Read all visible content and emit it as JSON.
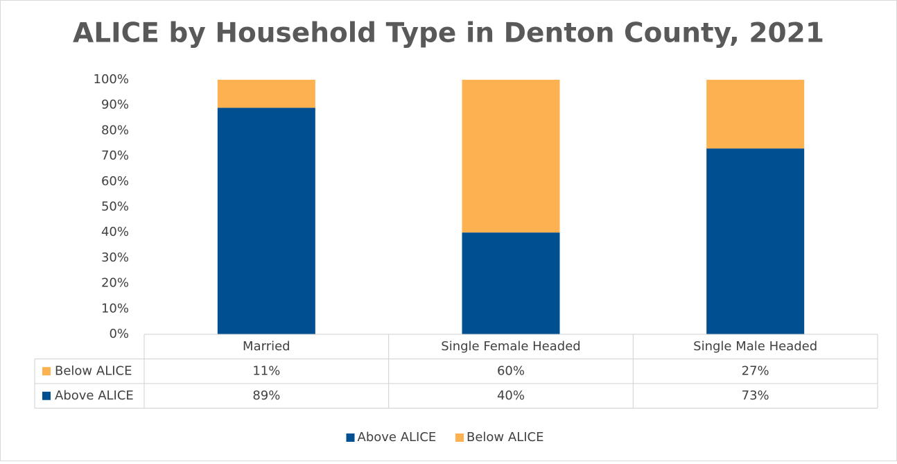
{
  "chart_data": {
    "type": "stacked_bar",
    "title": "ALICE by Household Type in Denton County, 2021",
    "categories": [
      "Married",
      "Single Female Headed",
      "Single Male Headed"
    ],
    "series": [
      {
        "name": "Above ALICE",
        "color": "#005091",
        "values": [
          89,
          40,
          73
        ],
        "value_labels": [
          "89%",
          "40%",
          "73%"
        ]
      },
      {
        "name": "Below ALICE",
        "color": "#FDB150",
        "values": [
          11,
          60,
          27
        ],
        "value_labels": [
          "11%",
          "60%",
          "27%"
        ]
      }
    ],
    "ylim": [
      0,
      100
    ],
    "yticks": [
      {
        "value": 0,
        "label": "0%"
      },
      {
        "value": 10,
        "label": "10%"
      },
      {
        "value": 20,
        "label": "20%"
      },
      {
        "value": 30,
        "label": "30%"
      },
      {
        "value": 40,
        "label": "40%"
      },
      {
        "value": 50,
        "label": "50%"
      },
      {
        "value": 60,
        "label": "60%"
      },
      {
        "value": 70,
        "label": "70%"
      },
      {
        "value": 80,
        "label": "80%"
      },
      {
        "value": 90,
        "label": "90%"
      },
      {
        "value": 100,
        "label": "100%"
      }
    ],
    "grid": false,
    "data_table": true,
    "legend": "bottom"
  }
}
